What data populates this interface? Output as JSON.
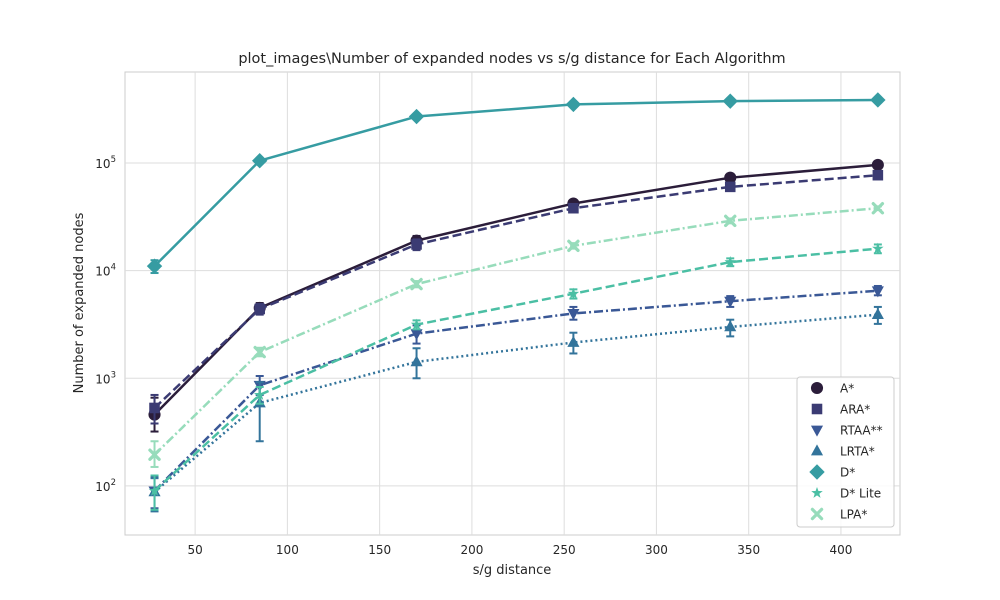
{
  "chart_data": {
    "type": "line",
    "title": "plot_images\\Number of expanded nodes vs s/g distance for Each Algorithm",
    "xlabel": "s/g distance",
    "ylabel": "Number of expanded nodes",
    "yscale": "log",
    "xlim": [
      12,
      432
    ],
    "ylim": [
      35,
      700000
    ],
    "xticks": [
      50,
      100,
      150,
      200,
      250,
      300,
      350,
      400
    ],
    "yticks": [
      {
        "value": 100,
        "base": "10",
        "exp": "2"
      },
      {
        "value": 1000,
        "base": "10",
        "exp": "3"
      },
      {
        "value": 10000,
        "base": "10",
        "exp": "4"
      },
      {
        "value": 100000,
        "base": "10",
        "exp": "5"
      }
    ],
    "grid": true,
    "legend_position": "lower-right",
    "x": [
      28,
      85,
      170,
      255,
      340,
      420
    ],
    "series": [
      {
        "name": "A*",
        "color": "#2b1d3a",
        "dash": "solid",
        "marker": "circle",
        "values": [
          460,
          4500,
          19000,
          42000,
          73000,
          96000
        ],
        "err_low": [
          320,
          4000,
          17000,
          40000,
          70000,
          93000
        ],
        "err_high": [
          660,
          5000,
          21000,
          44000,
          76000,
          99000
        ]
      },
      {
        "name": "ARA*",
        "color": "#3b3b73",
        "dash": "dashed",
        "marker": "square",
        "values": [
          530,
          4400,
          17500,
          38000,
          60000,
          77000
        ],
        "err_low": [
          380,
          3900,
          15500,
          36000,
          57000,
          74000
        ],
        "err_high": [
          700,
          4900,
          19500,
          40000,
          63000,
          80000
        ]
      },
      {
        "name": "RTAA**",
        "color": "#3a5896",
        "dash": "dashdot",
        "marker": "triangle-down",
        "values": [
          90,
          860,
          2600,
          4000,
          5200,
          6500
        ],
        "err_low": [
          62,
          700,
          2100,
          3500,
          4600,
          5900
        ],
        "err_high": [
          120,
          1050,
          3100,
          4600,
          5800,
          7200
        ]
      },
      {
        "name": "LRTA*",
        "color": "#33749b",
        "dash": "dotted",
        "marker": "triangle-up",
        "values": [
          88,
          590,
          1420,
          2150,
          3000,
          3900
        ],
        "err_low": [
          58,
          260,
          1000,
          1700,
          2450,
          3200
        ],
        "err_high": [
          118,
          920,
          1900,
          2650,
          3500,
          4600
        ]
      },
      {
        "name": "D*",
        "color": "#369ca2",
        "dash": "solid",
        "marker": "diamond",
        "values": [
          11000,
          105000,
          270000,
          350000,
          375000,
          385000
        ],
        "err_low": [
          9500,
          102000,
          265000,
          345000,
          370000,
          380000
        ],
        "err_high": [
          12500,
          108000,
          275000,
          355000,
          380000,
          390000
        ]
      },
      {
        "name": "D* Lite",
        "color": "#4bbfa4",
        "dash": "dashed",
        "marker": "star",
        "values": [
          90,
          700,
          3150,
          6100,
          12000,
          16000
        ],
        "err_low": [
          60,
          580,
          2850,
          5500,
          11000,
          14500
        ],
        "err_high": [
          125,
          830,
          3450,
          6700,
          13000,
          17500
        ]
      },
      {
        "name": "LPA*",
        "color": "#97dcbb",
        "dash": "dashdot",
        "marker": "x",
        "values": [
          195,
          1750,
          7500,
          17000,
          29000,
          38000
        ],
        "err_low": [
          150,
          1600,
          7000,
          16000,
          27500,
          36500
        ],
        "err_high": [
          260,
          1920,
          8000,
          18000,
          30500,
          39500
        ]
      }
    ]
  }
}
